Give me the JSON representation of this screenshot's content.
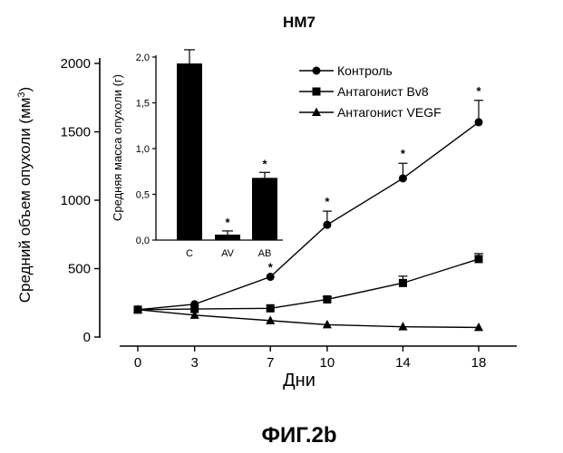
{
  "chart_data": [
    {
      "type": "line",
      "title": "HM7",
      "xlabel": "Дни",
      "ylabel": "Средний объем опухоли (мм",
      "ylabel_sup": "3",
      "ylabel_close": ")",
      "x": [
        0,
        3,
        7,
        10,
        14,
        18
      ],
      "xlim": [
        0,
        18
      ],
      "ylim": [
        0,
        2000
      ],
      "xticks": [
        "0",
        "3",
        "7",
        "10",
        "14",
        "18"
      ],
      "yticks": [
        "0",
        "500",
        "1000",
        "1500",
        "2000"
      ],
      "legend_position": "top-right",
      "series": [
        {
          "name": "Контроль",
          "marker": "circle",
          "values": [
            200,
            240,
            440,
            820,
            1160,
            1570
          ],
          "errors": [
            0,
            0,
            0,
            100,
            110,
            160
          ]
        },
        {
          "name": "Антагонист Bv8",
          "marker": "square",
          "values": [
            200,
            205,
            210,
            275,
            395,
            570
          ],
          "errors": [
            0,
            0,
            0,
            20,
            50,
            40
          ]
        },
        {
          "name": "Антагонист VEGF",
          "marker": "triangle",
          "values": [
            200,
            160,
            120,
            90,
            75,
            70
          ],
          "errors": [
            0,
            0,
            0,
            0,
            0,
            0
          ]
        }
      ],
      "annotations": [
        "*",
        "*",
        "*",
        "*"
      ]
    },
    {
      "type": "bar",
      "ylabel": "Средняя масса опухоли (г)",
      "categories": [
        "C",
        "AV",
        "AB"
      ],
      "values": [
        1.93,
        0.06,
        0.68
      ],
      "errors": [
        0.15,
        0.04,
        0.06
      ],
      "ylim": [
        0,
        2.0
      ],
      "yticks": [
        "0,0",
        "0,5",
        "1,0",
        "1,5",
        "2,0"
      ],
      "annotations": [
        "*",
        "*"
      ]
    }
  ],
  "caption": "ФИГ.2b"
}
